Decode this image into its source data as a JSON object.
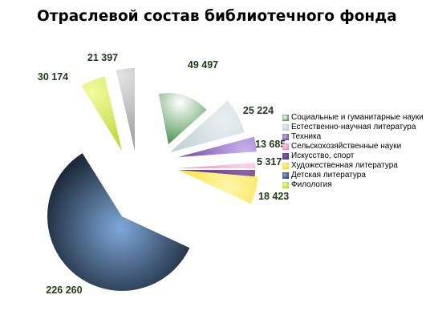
{
  "chart_data": {
    "type": "pie",
    "title": "Отраслевой состав библиотечного фонда",
    "exploded": true,
    "legend_position": "right",
    "slices": [
      {
        "label": "Социальные и гуманитарные науки",
        "value": 49497,
        "value_text": "49 497",
        "color": "#1e7a24",
        "color_light": "#ffffff"
      },
      {
        "label": "Естественно-научная литература",
        "value": 25224,
        "value_text": "25 224",
        "color": "#aebfc6",
        "color_light": "#eaf0f2"
      },
      {
        "label": "Техника",
        "value": 13685,
        "value_text": "13 685",
        "color": "#5a2d91",
        "color_light": "#c9b2ec"
      },
      {
        "label": "Сельскохозяйственные науки",
        "value": 5317,
        "value_text": "5 317",
        "color": "#f06fb8",
        "color_light": "#fbd2ea"
      },
      {
        "label": "Искусство, спорт",
        "value": 5317,
        "value_text": "5 317",
        "color": "#4a2468",
        "color_light": "#8a62a8"
      },
      {
        "label": "Художественная литература",
        "value": 18423,
        "value_text": "18 423",
        "color": "#f2d400",
        "color_light": "#fff6a8"
      },
      {
        "label": "Детская литература",
        "value": 226260,
        "value_text": "226 260",
        "color": "#1d2b3d",
        "color_light": "#7fa8d8"
      },
      {
        "label": "Филология",
        "value": 30174,
        "value_text": "30 174",
        "color": "#a9cc10",
        "color_light": "#f2fb9e"
      },
      {
        "label": "",
        "value": 21397,
        "value_text": "21 397",
        "color": "#8e8e8e",
        "color_light": "#e2e2e2"
      }
    ]
  }
}
